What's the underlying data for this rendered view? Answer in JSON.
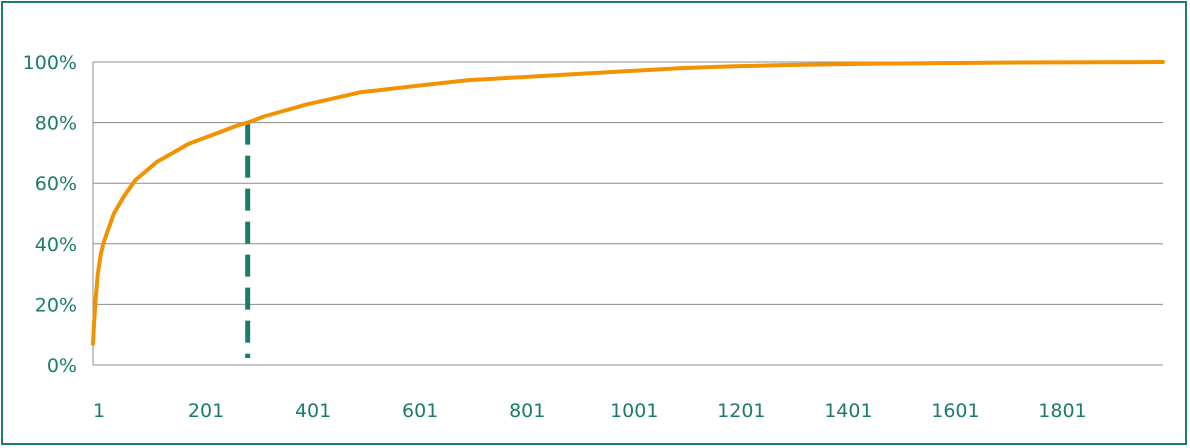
{
  "chart_data": {
    "type": "line",
    "title": "",
    "xlabel": "",
    "ylabel": "",
    "x_ticks": [
      "1",
      "201",
      "401",
      "601",
      "801",
      "1001",
      "1201",
      "1401",
      "1601",
      "1801"
    ],
    "y_ticks": [
      "0%",
      "20%",
      "40%",
      "60%",
      "80%",
      "100%"
    ],
    "xlim": [
      1,
      2000
    ],
    "ylim": [
      0,
      100
    ],
    "grid": true,
    "series": [
      {
        "color": "#f39200",
        "x": [
          1,
          3,
          6,
          10,
          15,
          20,
          30,
          40,
          50,
          60,
          80,
          100,
          120,
          150,
          180,
          210,
          240,
          270,
          290,
          320,
          360,
          400,
          450,
          500,
          550,
          600,
          700,
          800,
          900,
          1000,
          1100,
          1200,
          1300,
          1400,
          1500,
          1700,
          2000
        ],
        "y": [
          7,
          14,
          22,
          30,
          36,
          40,
          45,
          50,
          53,
          56,
          61,
          64,
          67,
          70,
          73,
          75,
          77,
          79,
          80,
          82,
          84,
          86,
          88,
          90,
          91,
          92,
          94,
          95,
          96,
          97,
          98,
          98.6,
          99,
          99.3,
          99.5,
          99.8,
          100
        ]
      }
    ],
    "reference_line": {
      "x": 290,
      "y": 80,
      "color": "#1b7b6c",
      "style": "dashed"
    }
  }
}
